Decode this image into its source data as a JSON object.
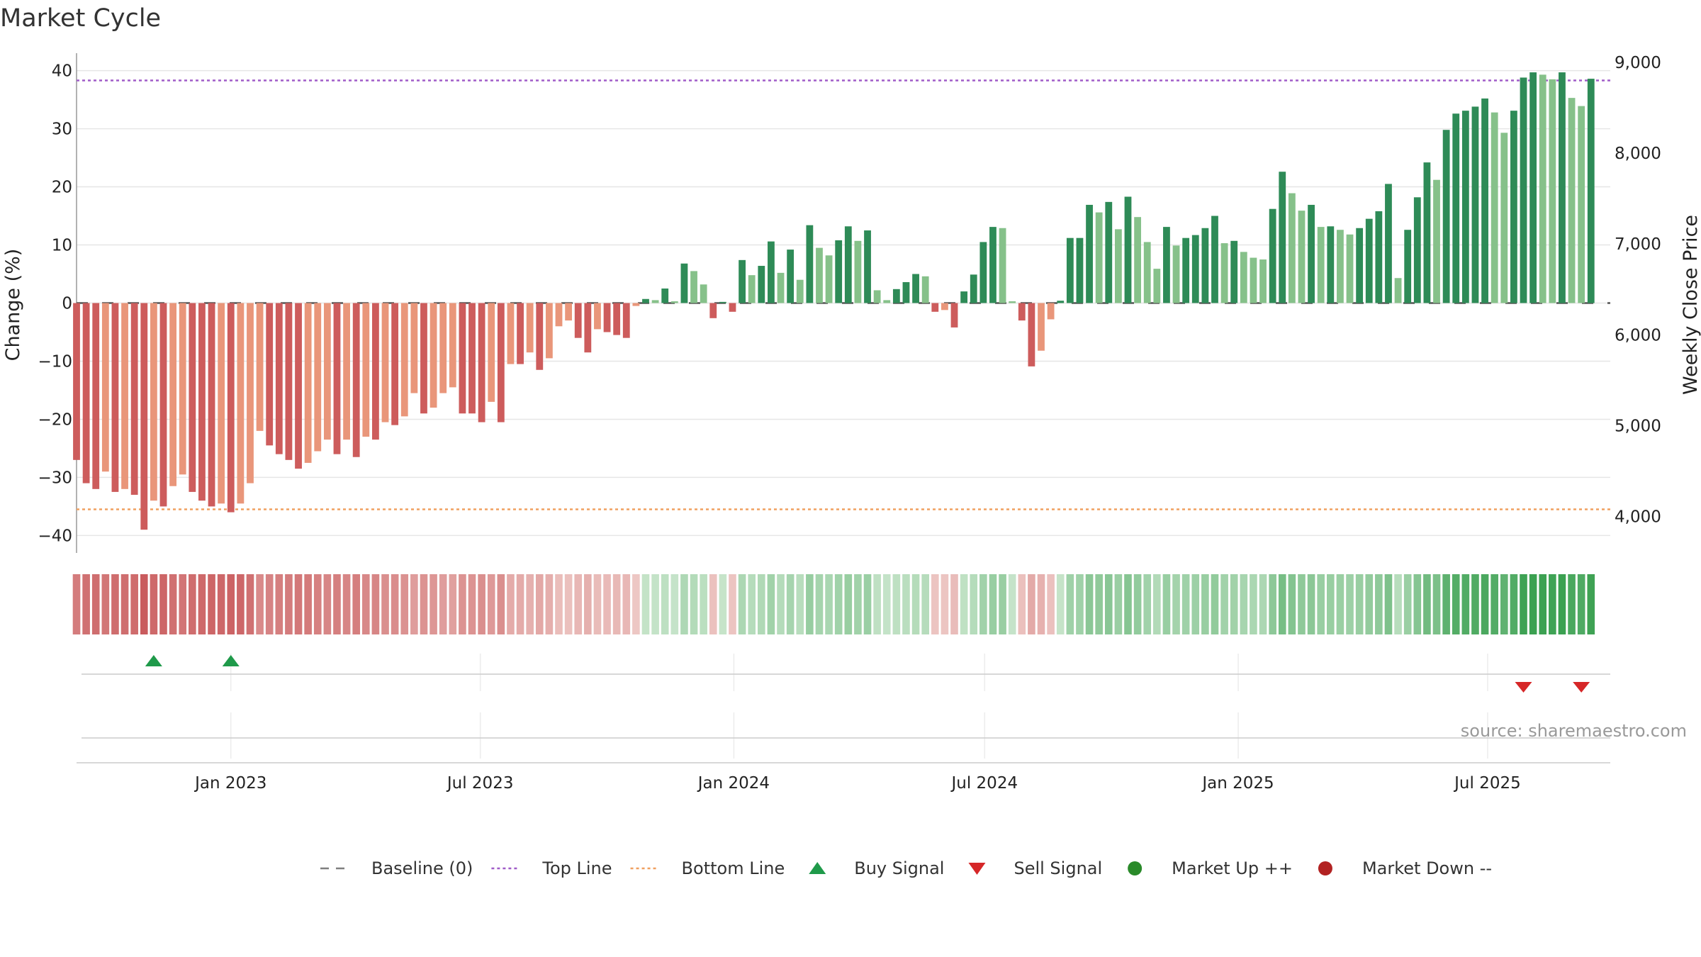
{
  "chart_data": {
    "type": "bar",
    "title": "Market Cycle",
    "ylabel": "Change (%)",
    "y2label": "Weekly Close Price",
    "ylim": [
      -43,
      43
    ],
    "yticks": [
      40,
      30,
      20,
      10,
      0,
      -10,
      -20,
      -30,
      -40
    ],
    "y2lim": [
      3600,
      9100
    ],
    "y2ticks": [
      9000,
      8000,
      7000,
      6000,
      5000,
      4000
    ],
    "xlim": [
      "2022-09-11",
      "2025-09-28"
    ],
    "xticks": [
      {
        "date": "2023-01-01",
        "label": "Jan 2023"
      },
      {
        "date": "2023-07-01",
        "label": "Jul 2023"
      },
      {
        "date": "2024-01-01",
        "label": "Jan 2024"
      },
      {
        "date": "2024-07-01",
        "label": "Jul 2024"
      },
      {
        "date": "2025-01-01",
        "label": "Jan 2025"
      },
      {
        "date": "2025-07-01",
        "label": "Jul 2025"
      }
    ],
    "first_week": "2022-09-11",
    "week_interval_days": 7,
    "weekly_change_pct": [
      -27,
      -31,
      -32,
      -29,
      -32.5,
      -32,
      -33,
      -39,
      -34,
      -35,
      -31.5,
      -29.5,
      -32.5,
      -34,
      -35,
      -34.5,
      -36,
      -34.5,
      -31,
      -22,
      -24.5,
      -26,
      -27,
      -28.5,
      -27.5,
      -25.5,
      -23.5,
      -26,
      -23.5,
      -26.5,
      -23,
      -23.5,
      -20.5,
      -21,
      -19.5,
      -15.5,
      -19,
      -18,
      -15.5,
      -14.5,
      -19,
      -19,
      -20.5,
      -17,
      -20.5,
      -10.5,
      -10.5,
      -8.5,
      -11.5,
      -9.5,
      -4,
      -3,
      -6,
      -8.5,
      -4.5,
      -5,
      -5.5,
      -6,
      -0.5,
      0.7,
      0.5,
      2.5,
      0.3,
      6.8,
      5.5,
      3.2,
      -2.6,
      0.2,
      -1.5,
      7.4,
      4.8,
      6.4,
      10.6,
      5.2,
      9.2,
      4,
      13.4,
      9.5,
      8.2,
      10.8,
      13.2,
      10.7,
      12.5,
      2.2,
      0.5,
      2.4,
      3.6,
      5,
      4.6,
      -1.5,
      -1.2,
      -4.2,
      2,
      4.9,
      10.5,
      13.1,
      12.9,
      0.3,
      -3,
      -10.9,
      -8.2,
      -2.8,
      0.4,
      11.2,
      11.2,
      16.9,
      15.6,
      17.4,
      12.7,
      18.3,
      14.8,
      10.5,
      5.9,
      13.1,
      9.9,
      11.2,
      11.7,
      12.9,
      15,
      10.3,
      10.7,
      8.8,
      7.8,
      7.5,
      16.2,
      22.6,
      18.9,
      15.9,
      16.9,
      13.1,
      13.2,
      12.6,
      11.8,
      12.9,
      14.5,
      15.8,
      20.5,
      4.3,
      12.6,
      18.2,
      24.2,
      21.2,
      29.8,
      32.6,
      33.1,
      33.8,
      35.2,
      32.8,
      29.3,
      33.1,
      38.8,
      39.7,
      39.3,
      38.5,
      39.7,
      35.3,
      33.9,
      38.6
    ],
    "baseline": 0,
    "top_line": 38.3,
    "bottom_line": -35.5,
    "buy_signals": [
      "2022-11-06",
      "2023-01-01"
    ],
    "sell_signals": [
      "2025-07-27",
      "2025-09-07"
    ],
    "legend": {
      "position": "bottom-center",
      "items": [
        {
          "label": "Baseline (0)",
          "symbol": "dash",
          "color": "#7f7f7f"
        },
        {
          "label": "Top Line",
          "symbol": "dot",
          "color": "#a05cc8"
        },
        {
          "label": "Bottom Line",
          "symbol": "dot",
          "color": "#f0a060"
        },
        {
          "label": "Buy Signal",
          "symbol": "triangle-up",
          "color": "#1f9a4a"
        },
        {
          "label": "Sell Signal",
          "symbol": "triangle-down",
          "color": "#d62728"
        },
        {
          "label": "Market Up ++",
          "symbol": "circle",
          "color": "#2a8a2a"
        },
        {
          "label": "Market Down --",
          "symbol": "circle",
          "color": "#b22222"
        }
      ]
    },
    "colors": {
      "up_dark": "#2e8b57",
      "up_light": "#86c18a",
      "down_dark": "#cd5c5c",
      "down_light": "#e9967a",
      "top_line": "#a05cc8",
      "bottom_line": "#f0a060",
      "baseline": "#555555",
      "grid": "#e6e6e6",
      "buy": "#1f9a4a",
      "sell": "#d62728"
    },
    "grid": true
  },
  "source": "source: sharemaestro.com"
}
